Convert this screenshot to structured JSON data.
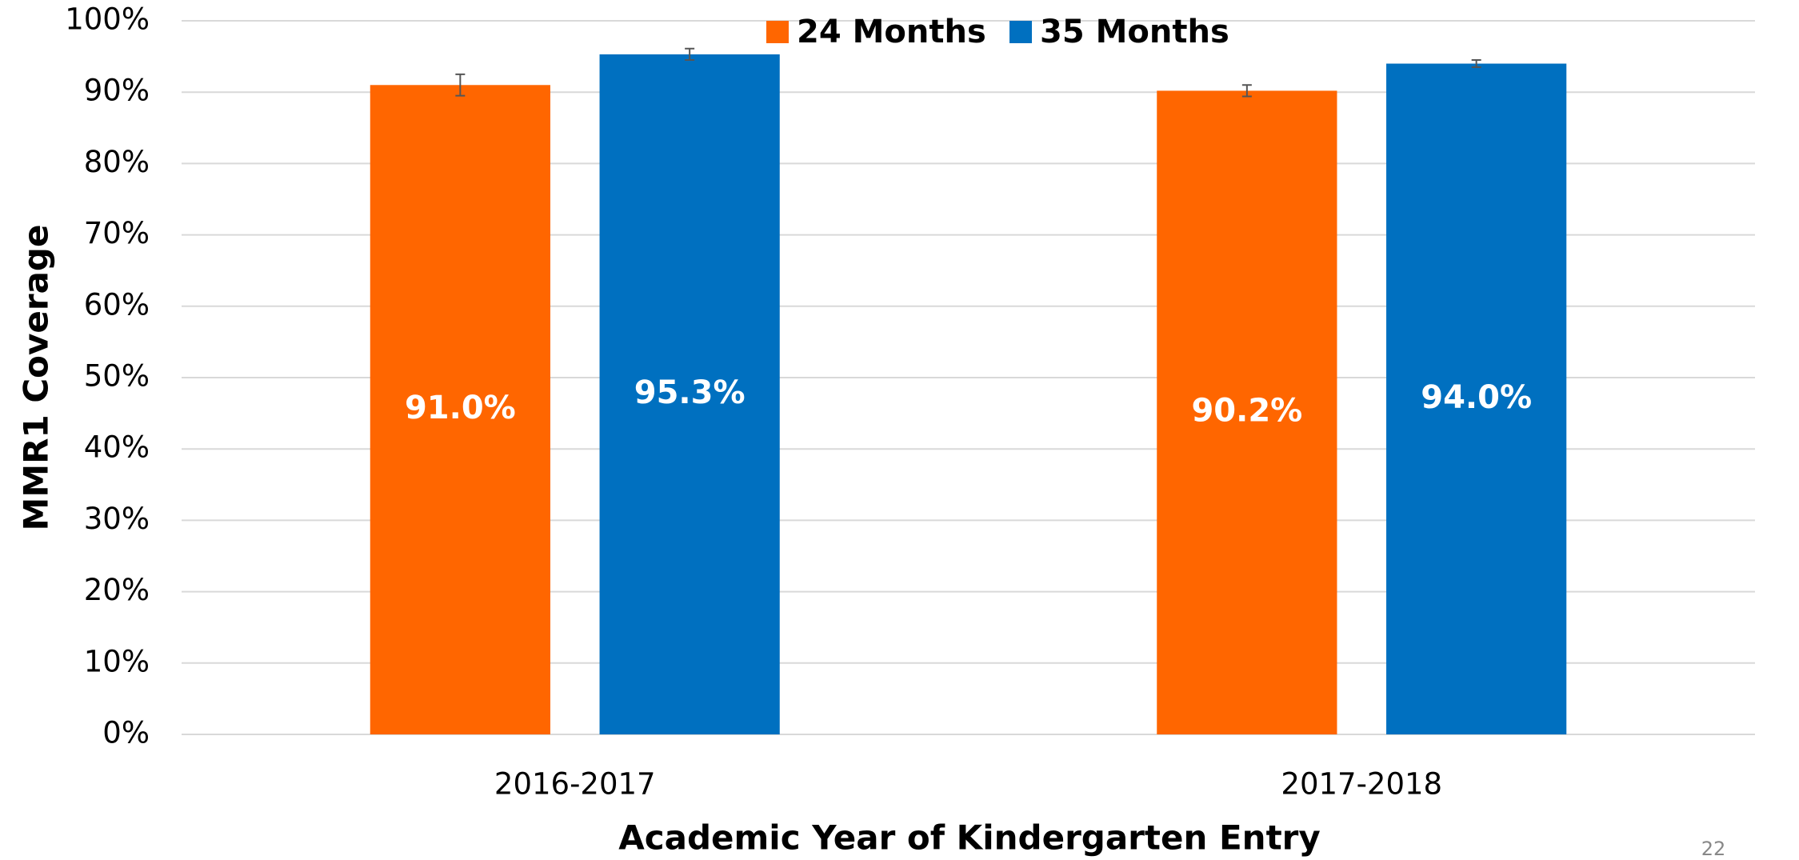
{
  "chart_data": {
    "type": "bar",
    "y_label": "MMR1 Coverage",
    "x_label": "Academic Year of Kindergarten Entry",
    "categories": [
      "2016-2017",
      "2017-2018"
    ],
    "series": [
      {
        "name": "24 Months",
        "color": "#ff6600",
        "values": [
          91.0,
          90.2
        ],
        "value_labels": [
          "91.0%",
          "90.2%"
        ],
        "errors": [
          1.5,
          0.8
        ]
      },
      {
        "name": "35 Months",
        "color": "#0070c0",
        "values": [
          95.3,
          94.0
        ],
        "value_labels": [
          "95.3%",
          "94.0%"
        ],
        "errors": [
          0.8,
          0.5
        ]
      }
    ],
    "ylim": [
      0,
      100
    ],
    "yticks": [
      {
        "value": 0,
        "label": "0%"
      },
      {
        "value": 10,
        "label": "10%"
      },
      {
        "value": 20,
        "label": "20%"
      },
      {
        "value": 30,
        "label": "30%"
      },
      {
        "value": 40,
        "label": "40%"
      },
      {
        "value": 50,
        "label": "50%"
      },
      {
        "value": 60,
        "label": "60%"
      },
      {
        "value": 70,
        "label": "70%"
      },
      {
        "value": 80,
        "label": "80%"
      },
      {
        "value": 90,
        "label": "90%"
      },
      {
        "value": 100,
        "label": "100%"
      }
    ],
    "grid": true,
    "legend": "top"
  },
  "page_number": "22"
}
